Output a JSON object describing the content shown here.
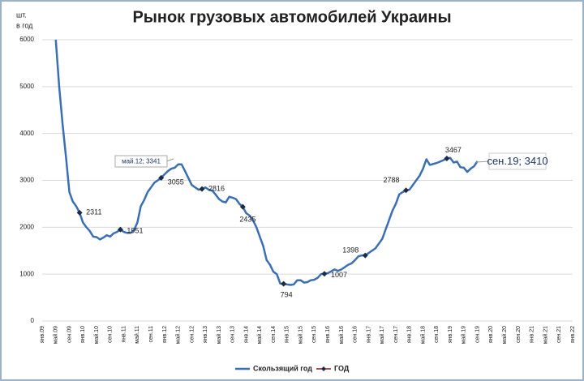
{
  "chart_data": {
    "type": "line",
    "title": "Рынок грузовых автомобилей Украины",
    "ylabel": [
      "шт.",
      "в год"
    ],
    "categories": [
      "янв.09",
      null,
      null,
      null,
      "май.09",
      null,
      null,
      null,
      "сен.09",
      null,
      null,
      null,
      "янв.10",
      null,
      null,
      null,
      "май.10",
      null,
      null,
      null,
      "сен.10",
      null,
      null,
      null,
      "янв.11",
      null,
      null,
      null,
      "май.11",
      null,
      null,
      null,
      "сен.11",
      null,
      null,
      null,
      "янв.12",
      null,
      null,
      null,
      "май.12",
      null,
      null,
      null,
      "сен.12",
      null,
      null,
      null,
      "янв.13",
      null,
      null,
      null,
      "май.13",
      null,
      null,
      null,
      "сен.13",
      null,
      null,
      null,
      "янв.14",
      null,
      null,
      null,
      "май.14",
      null,
      null,
      null,
      "сен.14",
      null,
      null,
      null,
      "янв.15",
      null,
      null,
      null,
      "май.15",
      null,
      null,
      null,
      "сен.15",
      null,
      null,
      null,
      "янв.16",
      null,
      null,
      null,
      "май.16",
      null,
      null,
      null,
      "сен.16",
      null,
      null,
      null,
      "янв.17",
      null,
      null,
      null,
      "май.17",
      null,
      null,
      null,
      "сен.17",
      null,
      null,
      null,
      "янв.18",
      null,
      null,
      null,
      "май.18",
      null,
      null,
      null,
      "сен.18",
      null,
      null,
      null,
      "янв.19",
      null,
      null,
      null,
      "май.19",
      null,
      null,
      null,
      "сен.19",
      null,
      null,
      null,
      "янв.20",
      null,
      null,
      null,
      "май.20",
      null,
      null,
      null,
      "сен.20",
      null,
      null,
      null,
      "янв.21",
      null,
      null,
      null,
      "май.21",
      null,
      null,
      null,
      "сен.21",
      null,
      null,
      null,
      "янв.22"
    ],
    "series": [
      {
        "name": "Скользящий год",
        "color": "#3b6fb3",
        "values": [
          null,
          null,
          null,
          null,
          6000,
          5000,
          4200,
          3500,
          2750,
          2550,
          2450,
          2311,
          2100,
          2000,
          1920,
          1800,
          1790,
          1740,
          1780,
          1830,
          1800,
          1870,
          1900,
          1951,
          1900,
          1880,
          1880,
          1940,
          2100,
          2450,
          2580,
          2750,
          2850,
          2950,
          3000,
          3055,
          3130,
          3200,
          3250,
          3270,
          3341,
          3341,
          3200,
          3050,
          2900,
          2850,
          2800,
          2816,
          2850,
          2800,
          2780,
          2700,
          2600,
          2550,
          2530,
          2650,
          2630,
          2600,
          2500,
          2435,
          2300,
          2250,
          2150,
          2000,
          1800,
          1600,
          1300,
          1200,
          1050,
          1000,
          800,
          794,
          780,
          770,
          780,
          870,
          870,
          820,
          830,
          870,
          880,
          920,
          1000,
          1007,
          1020,
          1060,
          1100,
          1070,
          1100,
          1150,
          1200,
          1230,
          1300,
          1380,
          1400,
          1398,
          1450,
          1500,
          1550,
          1650,
          1750,
          1950,
          2150,
          2350,
          2500,
          2700,
          2750,
          2788,
          2800,
          2900,
          3000,
          3100,
          3250,
          3450,
          3330,
          3350,
          3370,
          3400,
          3430,
          3467,
          3480,
          3380,
          3400,
          3280,
          3270,
          3180,
          3250,
          3300,
          3410,
          null,
          null,
          null,
          null,
          null,
          null,
          null,
          null,
          null,
          null,
          null,
          null,
          null,
          null,
          null,
          null,
          null,
          null,
          null,
          null,
          null,
          null,
          null,
          null,
          null,
          null,
          null,
          null
        ]
      },
      {
        "name": "ГОД",
        "color": "#8b1a1a",
        "marker_color": "#1f2a44",
        "values": [
          null,
          null,
          null,
          null,
          null,
          null,
          null,
          null,
          null,
          null,
          null,
          2311,
          null,
          null,
          null,
          null,
          null,
          null,
          null,
          null,
          null,
          null,
          null,
          1951,
          null,
          null,
          null,
          null,
          null,
          null,
          null,
          null,
          null,
          null,
          null,
          3055,
          null,
          null,
          null,
          null,
          null,
          null,
          null,
          null,
          null,
          null,
          null,
          2816,
          null,
          null,
          null,
          null,
          null,
          null,
          null,
          null,
          null,
          null,
          null,
          2435,
          null,
          null,
          null,
          null,
          null,
          null,
          null,
          null,
          null,
          null,
          null,
          794,
          null,
          null,
          null,
          null,
          null,
          null,
          null,
          null,
          null,
          null,
          null,
          1007,
          null,
          null,
          null,
          null,
          null,
          null,
          null,
          null,
          null,
          null,
          null,
          1398,
          null,
          null,
          null,
          null,
          null,
          null,
          null,
          null,
          null,
          null,
          null,
          2788,
          null,
          null,
          null,
          null,
          null,
          null,
          null,
          null,
          null,
          null,
          null,
          3467,
          null,
          null,
          null,
          null,
          null,
          null,
          null,
          null,
          null,
          null,
          null,
          null,
          null,
          null,
          null,
          null,
          null,
          null,
          null,
          null,
          null,
          null,
          null,
          null,
          null,
          null,
          null,
          null,
          null,
          null,
          null,
          null,
          null,
          null,
          null,
          null,
          null
        ]
      }
    ],
    "annotations": [
      "май.12; 3341",
      "сен.19; 3410"
    ],
    "ylim": [
      0,
      6000
    ],
    "yticks": [
      0,
      1000,
      2000,
      3000,
      4000,
      5000,
      6000
    ],
    "grid": true,
    "legend": "bottom"
  }
}
